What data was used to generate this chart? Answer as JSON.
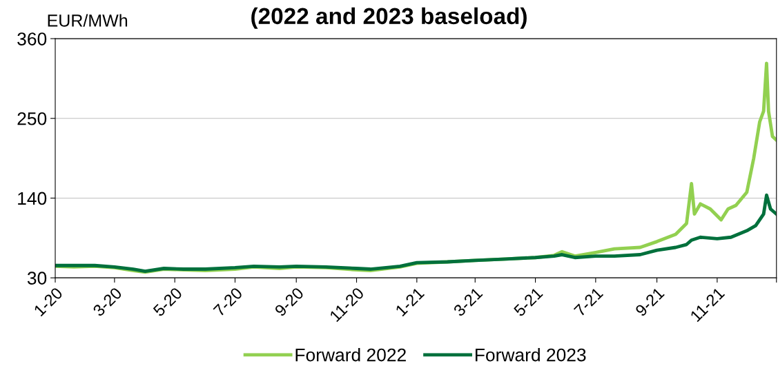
{
  "chart_data": {
    "type": "line",
    "title": "(2022 and 2023 baseload)",
    "ylabel": "EUR/MWh",
    "xlim": [
      "2020-01-01",
      "2021-12-31"
    ],
    "xticks": [
      {
        "value": "2020-01-01",
        "label": "1-20"
      },
      {
        "value": "2020-03-01",
        "label": "3-20"
      },
      {
        "value": "2020-05-01",
        "label": "5-20"
      },
      {
        "value": "2020-07-01",
        "label": "7-20"
      },
      {
        "value": "2020-09-01",
        "label": "9-20"
      },
      {
        "value": "2020-11-01",
        "label": "11-20"
      },
      {
        "value": "2021-01-01",
        "label": "1-21"
      },
      {
        "value": "2021-03-01",
        "label": "3-21"
      },
      {
        "value": "2021-05-01",
        "label": "5-21"
      },
      {
        "value": "2021-07-01",
        "label": "7-21"
      },
      {
        "value": "2021-09-01",
        "label": "9-21"
      },
      {
        "value": "2021-11-01",
        "label": "11-21"
      },
      {
        "value": "2021-12-31",
        "label": null
      }
    ],
    "ylim": [
      30,
      360
    ],
    "yticks": [
      30,
      140,
      250,
      360
    ],
    "grid": "y",
    "legend": "bottom",
    "marker": "none",
    "line_style": "solid",
    "series": [
      {
        "name": "Forward 2022",
        "color": "#92d050",
        "x": [
          "2020-01-01",
          "2020-01-20",
          "2020-02-10",
          "2020-03-01",
          "2020-03-20",
          "2020-04-01",
          "2020-04-20",
          "2020-05-10",
          "2020-06-01",
          "2020-07-01",
          "2020-07-20",
          "2020-08-15",
          "2020-09-01",
          "2020-10-01",
          "2020-11-01",
          "2020-11-15",
          "2020-12-15",
          "2021-01-01",
          "2021-02-01",
          "2021-03-01",
          "2021-04-01",
          "2021-05-01",
          "2021-05-20",
          "2021-05-28",
          "2021-06-10",
          "2021-07-01",
          "2021-07-20",
          "2021-08-15",
          "2021-09-01",
          "2021-09-20",
          "2021-10-01",
          "2021-10-06",
          "2021-10-09",
          "2021-10-15",
          "2021-10-25",
          "2021-11-05",
          "2021-11-12",
          "2021-11-20",
          "2021-12-01",
          "2021-12-08",
          "2021-12-14",
          "2021-12-18",
          "2021-12-21",
          "2021-12-23",
          "2021-12-27",
          "2021-12-31"
        ],
        "values": [
          46,
          45,
          46,
          44,
          40,
          38,
          42,
          41,
          40,
          42,
          45,
          43,
          45,
          44,
          41,
          40,
          45,
          50,
          52,
          54,
          56,
          58,
          61,
          66,
          60,
          65,
          70,
          72,
          80,
          90,
          105,
          160,
          118,
          132,
          125,
          110,
          125,
          130,
          148,
          195,
          245,
          260,
          326,
          260,
          225,
          220
        ]
      },
      {
        "name": "Forward 2023",
        "color": "#00703c",
        "x": [
          "2020-01-01",
          "2020-01-20",
          "2020-02-10",
          "2020-03-01",
          "2020-03-20",
          "2020-04-01",
          "2020-04-20",
          "2020-05-10",
          "2020-06-01",
          "2020-07-01",
          "2020-07-20",
          "2020-08-15",
          "2020-09-01",
          "2020-10-01",
          "2020-11-01",
          "2020-11-15",
          "2020-12-15",
          "2021-01-01",
          "2021-02-01",
          "2021-03-01",
          "2021-04-01",
          "2021-05-01",
          "2021-05-20",
          "2021-05-28",
          "2021-06-10",
          "2021-07-01",
          "2021-07-20",
          "2021-08-15",
          "2021-09-01",
          "2021-09-20",
          "2021-10-01",
          "2021-10-06",
          "2021-10-15",
          "2021-11-01",
          "2021-11-15",
          "2021-12-01",
          "2021-12-10",
          "2021-12-18",
          "2021-12-21",
          "2021-12-25",
          "2021-12-31"
        ],
        "values": [
          47,
          47,
          47,
          45,
          42,
          39,
          43,
          42,
          42,
          44,
          46,
          45,
          46,
          45,
          43,
          42,
          46,
          51,
          52,
          54,
          56,
          58,
          60,
          62,
          58,
          60,
          60,
          62,
          68,
          72,
          76,
          82,
          86,
          84,
          86,
          95,
          102,
          118,
          144,
          125,
          118
        ]
      }
    ]
  }
}
